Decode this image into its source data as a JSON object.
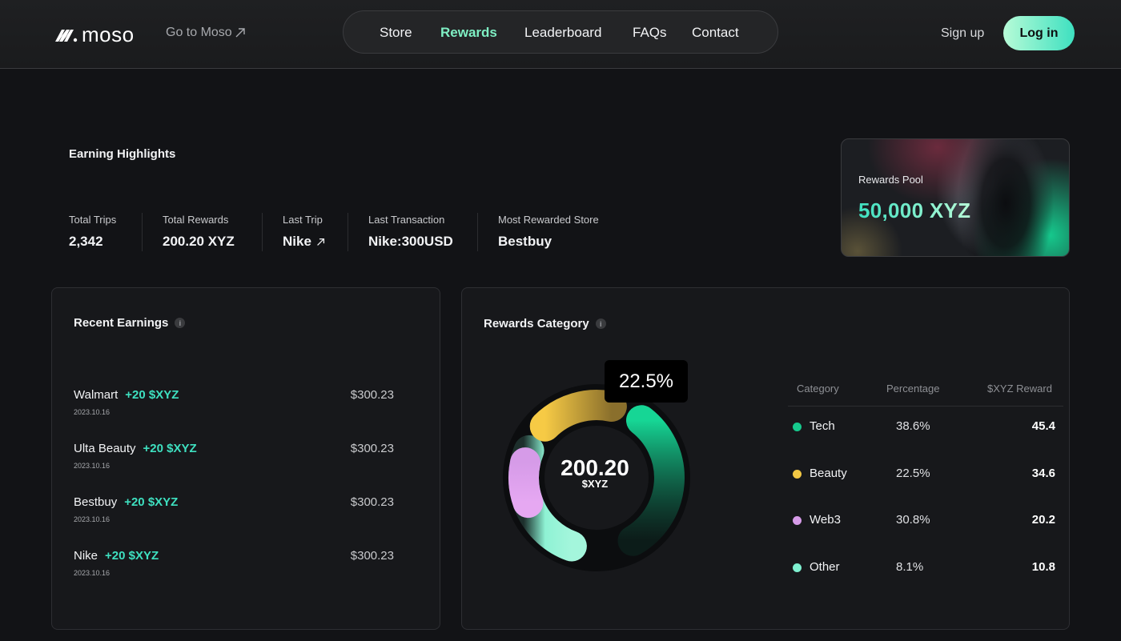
{
  "header": {
    "brand": "moso",
    "goto_label": "Go to Moso",
    "nav": [
      {
        "label": "Store"
      },
      {
        "label": "Rewards"
      },
      {
        "label": "Leaderboard"
      },
      {
        "label": "FAQs"
      },
      {
        "label": "Contact"
      }
    ],
    "active_nav": "Rewards",
    "signup_label": "Sign up",
    "login_label": "Log in"
  },
  "highlights": {
    "title": "Earning Highlights",
    "stats": [
      {
        "label": "Total Trips",
        "value": "2,342"
      },
      {
        "label": "Total Rewards",
        "value": "200.20 XYZ"
      },
      {
        "label": "Last Trip",
        "value": "Nike"
      },
      {
        "label": "Last Transaction",
        "value": "Nike:300USD"
      },
      {
        "label": "Most Rewarded Store",
        "value": "Bestbuy"
      }
    ]
  },
  "pool": {
    "label": "Rewards Pool",
    "value": "50,000 XYZ"
  },
  "recent": {
    "title": "Recent Earnings",
    "items": [
      {
        "store": "Walmart",
        "bonus": "+20 $XYZ",
        "date": "2023.10.16",
        "amount": "$300.23"
      },
      {
        "store": "Ulta Beauty",
        "bonus": "+20 $XYZ",
        "date": "2023.10.16",
        "amount": "$300.23"
      },
      {
        "store": "Bestbuy",
        "bonus": "+20 $XYZ",
        "date": "2023.10.16",
        "amount": "$300.23"
      },
      {
        "store": "Nike",
        "bonus": "+20 $XYZ",
        "date": "2023.10.16",
        "amount": "$300.23"
      }
    ]
  },
  "category": {
    "title": "Rewards Category",
    "tooltip": "22.5%",
    "center_value": "200.20",
    "center_unit": "$XYZ",
    "headers": {
      "category": "Category",
      "percentage": "Percentage",
      "reward": "$XYZ Reward"
    },
    "rows": [
      {
        "name": "Tech",
        "percentage": "38.6%",
        "reward": "45.4",
        "color": "#16c98d"
      },
      {
        "name": "Beauty",
        "percentage": "22.5%",
        "reward": "34.6",
        "color": "#f2c744"
      },
      {
        "name": "Web3",
        "percentage": "30.8%",
        "reward": "20.2",
        "color": "#d69be8"
      },
      {
        "name": "Other",
        "percentage": "8.1%",
        "reward": "10.8",
        "color": "#7ff0d0"
      }
    ]
  },
  "colors": {
    "accent": "#3ee0c0",
    "active_nav": "#7ff0c4",
    "background": "#121316"
  }
}
